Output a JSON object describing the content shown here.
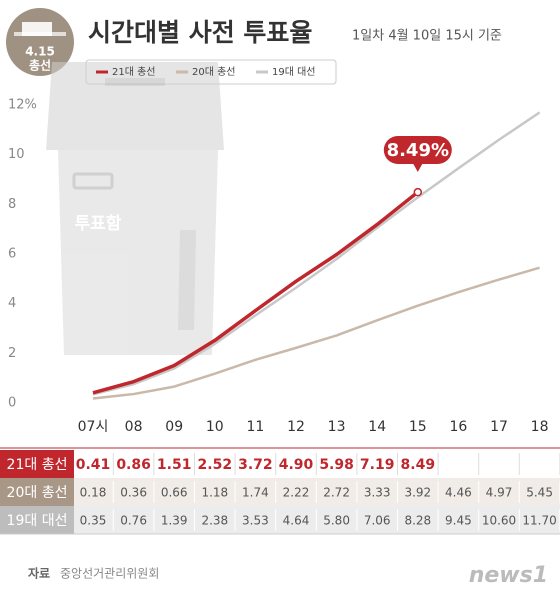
{
  "chart_data": {
    "type": "line",
    "badge": "4.15",
    "badge_sub": "총선",
    "title": "시간대별 사전 투표율",
    "subtitle": "1일차 4월 10일  15시 기준",
    "illustration_label": "투표함",
    "annotation": "8.49%",
    "categories": [
      "07시",
      "08",
      "09",
      "10",
      "11",
      "12",
      "13",
      "14",
      "15",
      "16",
      "17",
      "18"
    ],
    "series": [
      {
        "name": "21대 총선",
        "color": "#c0272d",
        "values": [
          0.41,
          0.86,
          1.51,
          2.52,
          3.72,
          4.9,
          5.98,
          7.19,
          8.49,
          null,
          null,
          null
        ],
        "value_labels": [
          "0.41",
          "0.86",
          "1.51",
          "2.52",
          "3.72",
          "4.90",
          "5.98",
          "7.19",
          "8.49",
          null,
          null,
          null
        ]
      },
      {
        "name": "20대 총선",
        "color": "#c9b9a9",
        "values": [
          0.18,
          0.36,
          0.66,
          1.18,
          1.74,
          2.22,
          2.72,
          3.33,
          3.92,
          4.46,
          4.97,
          5.45
        ],
        "value_labels": [
          "0.18",
          "0.36",
          "0.66",
          "1.18",
          "1.74",
          "2.22",
          "2.72",
          "3.33",
          "3.92",
          "4.46",
          "4.97",
          "5.45"
        ]
      },
      {
        "name": "19대 대선",
        "color": "#c8c8c8",
        "values": [
          0.35,
          0.76,
          1.39,
          2.38,
          3.53,
          4.64,
          5.8,
          7.06,
          8.28,
          9.45,
          10.6,
          11.7
        ],
        "value_labels": [
          "0.35",
          "0.76",
          "1.39",
          "2.38",
          "3.53",
          "4.64",
          "5.80",
          "7.06",
          "8.28",
          "9.45",
          "10.60",
          "11.70"
        ]
      }
    ],
    "ylim": [
      0,
      12
    ],
    "yticks": [
      0,
      2,
      4,
      6,
      8,
      10,
      {
        "value": 12,
        "label": "12%"
      }
    ],
    "grid": false,
    "source_label": "자료",
    "source": "중앙선거관리위원회",
    "logo": "news1"
  }
}
